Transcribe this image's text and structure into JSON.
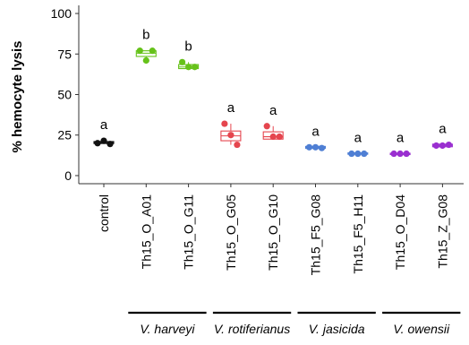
{
  "chart_data": {
    "type": "box",
    "ylabel": "% hemocyte lysis",
    "ylim": [
      -5,
      105
    ],
    "yticks": [
      0,
      25,
      50,
      75,
      100
    ],
    "grid": false,
    "categories": [
      "control",
      "Th15_O_A01",
      "Th15_O_G11",
      "Th15_O_G05",
      "Th15_O_G10",
      "Th15_F5_G08",
      "Th15_F5_H11",
      "Th15_O_D04",
      "Th15_Z_G08"
    ],
    "colors": [
      "#111111",
      "#66c21a",
      "#66c21a",
      "#e5454e",
      "#e5454e",
      "#4f7fd4",
      "#4f7fd4",
      "#9a2fd0",
      "#9a2fd0"
    ],
    "boxes": [
      {
        "q1": 19.8,
        "median": 20.3,
        "q3": 21.0,
        "points": [
          20,
          21.5,
          19.5
        ]
      },
      {
        "q1": 73.5,
        "median": 75.5,
        "q3": 77.0,
        "points": [
          77,
          71,
          77
        ]
      },
      {
        "q1": 66.0,
        "median": 67.0,
        "q3": 68.5,
        "points": [
          70,
          67,
          67
        ]
      },
      {
        "q1": 21.5,
        "median": 24.5,
        "q3": 27.5,
        "points": [
          32,
          25,
          19
        ]
      },
      {
        "q1": 22.5,
        "median": 24.0,
        "q3": 27.0,
        "points": [
          30.5,
          24,
          24
        ]
      },
      {
        "q1": 16.8,
        "median": 17.4,
        "q3": 18.0,
        "points": [
          17.5,
          17.5,
          17
        ]
      },
      {
        "q1": 13.2,
        "median": 13.6,
        "q3": 14.0,
        "points": [
          13.5,
          13.5,
          13.5
        ]
      },
      {
        "q1": 13.0,
        "median": 13.4,
        "q3": 13.8,
        "points": [
          13.5,
          13.5,
          13.5
        ]
      },
      {
        "q1": 17.8,
        "median": 18.6,
        "q3": 19.4,
        "points": [
          18.5,
          18.5,
          19
        ]
      }
    ],
    "significance_letters": [
      "a",
      "b",
      "b",
      "a",
      "a",
      "a",
      "a",
      "a",
      "a"
    ],
    "groups": [
      {
        "label": "V. harveyi",
        "from": 1,
        "to": 2
      },
      {
        "label": "V. rotiferianus",
        "from": 3,
        "to": 4
      },
      {
        "label": "V. jasicida",
        "from": 5,
        "to": 6
      },
      {
        "label": "V. owensii",
        "from": 7,
        "to": 8
      }
    ]
  }
}
